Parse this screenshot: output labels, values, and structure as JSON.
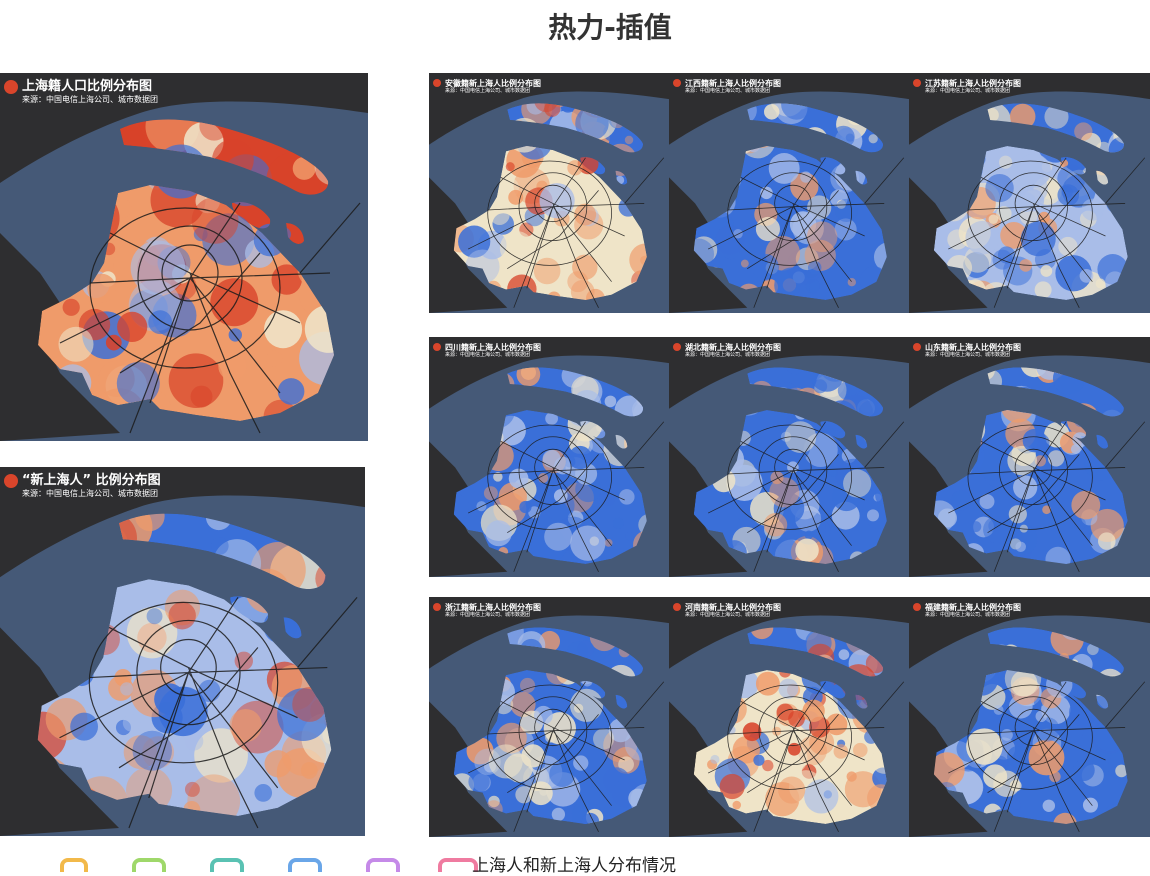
{
  "page": {
    "title": "热力-插值",
    "caption": "上海人和新上海人分布情况"
  },
  "source_text": "来源：中国电信上海公司、城市数据团",
  "panels": [
    {
      "id": "native",
      "title": "上海籍人口比例分布图",
      "scheme": "red-heavy"
    },
    {
      "id": "new",
      "title": "“新上海人” 比例分布图",
      "scheme": "west-red"
    },
    {
      "id": "anhui",
      "title": "安徽籍新上海人比例分布图",
      "scheme": "mixed"
    },
    {
      "id": "jiangxi",
      "title": "江西籍新上海人比例分布图",
      "scheme": "blue"
    },
    {
      "id": "jiangsu",
      "title": "江苏籍新上海人比例分布图",
      "scheme": "light"
    },
    {
      "id": "sichuan",
      "title": "四川籍新上海人比例分布图",
      "scheme": "blue"
    },
    {
      "id": "hubei",
      "title": "湖北籍新上海人比例分布图",
      "scheme": "blue"
    },
    {
      "id": "shandong",
      "title": "山东籍新上海人比例分布图",
      "scheme": "blue"
    },
    {
      "id": "zhejiang",
      "title": "浙江籍新上海人比例分布图",
      "scheme": "blue"
    },
    {
      "id": "henan",
      "title": "河南籍新上海人比例分布图",
      "scheme": "mixed"
    },
    {
      "id": "fujian",
      "title": "福建籍新上海人比例分布图",
      "scheme": "blue"
    }
  ],
  "colors": {
    "sea": "#455977",
    "land_outside": "#2e2e30",
    "cold": "#3a6fd8",
    "mid": "#a9bde8",
    "neutral": "#efe4c8",
    "warm": "#ef9b6a",
    "hot": "#d8432a",
    "badge": "#d9452b"
  }
}
